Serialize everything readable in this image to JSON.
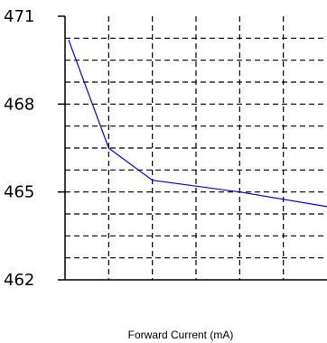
{
  "chart_data": {
    "type": "line",
    "title": "",
    "xlabel": "Forward Current (mA)",
    "ylabel": "",
    "xlim": [
      0,
      6
    ],
    "ylim": [
      462,
      471
    ],
    "yticks": [
      462,
      465,
      468,
      471
    ],
    "x_gridlines": [
      1,
      2,
      3,
      4,
      5
    ],
    "y_gridlines": [
      462.75,
      463.5,
      464.25,
      465,
      465.75,
      466.5,
      467.25,
      468,
      468.75,
      469.5,
      470.25
    ],
    "grid": true,
    "series": [
      {
        "name": "",
        "color": "#0000ff",
        "x": [
          0.08,
          1,
          2,
          4,
          6
        ],
        "y": [
          470.2,
          466.5,
          465.4,
          465.0,
          464.5
        ]
      }
    ]
  }
}
